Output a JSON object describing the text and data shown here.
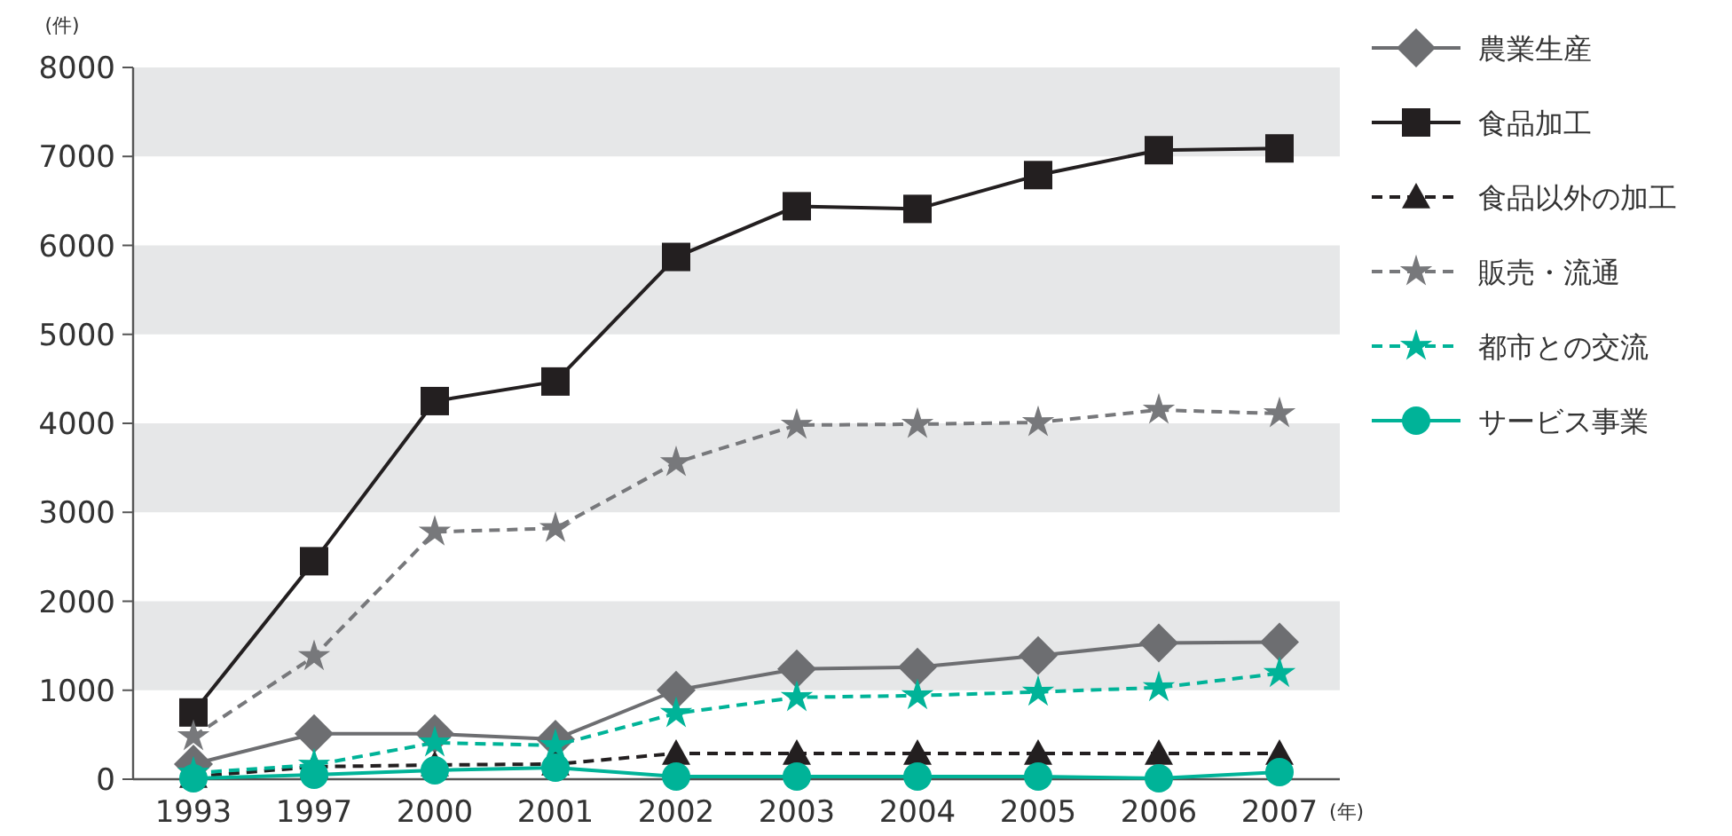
{
  "chart_data": {
    "type": "line",
    "xlabel": "(年)",
    "ylabel": "(件)",
    "categories": [
      "1993",
      "1997",
      "2000",
      "2001",
      "2002",
      "2003",
      "2004",
      "2005",
      "2006",
      "2007"
    ],
    "ylim": [
      0,
      8000
    ],
    "yticks": [
      0,
      1000,
      2000,
      3000,
      4000,
      5000,
      6000,
      7000,
      8000
    ],
    "grid": false,
    "legend": "right",
    "bands": [
      {
        "axis": "y",
        "from": 1000,
        "to": 2000,
        "color": "#e6e7e8"
      },
      {
        "axis": "y",
        "from": 3000,
        "to": 4000,
        "color": "#e6e7e8"
      },
      {
        "axis": "y",
        "from": 5000,
        "to": 6000,
        "color": "#e6e7e8"
      },
      {
        "axis": "y",
        "from": 7000,
        "to": 8000,
        "color": "#e6e7e8"
      }
    ],
    "series": [
      {
        "name": "農業生産",
        "color": "#6d6e71",
        "marker": "diamond",
        "line_style": "solid",
        "values": [
          170,
          510,
          510,
          450,
          1000,
          1240,
          1260,
          1390,
          1530,
          1540
        ]
      },
      {
        "name": "食品加工",
        "color": "#231f20",
        "marker": "square",
        "line_style": "solid",
        "values": [
          750,
          2450,
          4250,
          4470,
          5870,
          6440,
          6410,
          6790,
          7070,
          7090
        ]
      },
      {
        "name": "食品以外の加工",
        "color": "#231f20",
        "marker": "triangle",
        "line_style": "dashed",
        "values": [
          30,
          140,
          160,
          170,
          290,
          290,
          290,
          290,
          290,
          290
        ]
      },
      {
        "name": "販売・流通",
        "color": "#77787b",
        "marker": "star",
        "line_style": "dashed",
        "values": [
          480,
          1380,
          2780,
          2820,
          3560,
          3980,
          3990,
          4010,
          4150,
          4110
        ]
      },
      {
        "name": "都市との交流",
        "color": "#00b398",
        "marker": "star",
        "line_style": "dashed",
        "values": [
          70,
          160,
          410,
          380,
          740,
          920,
          940,
          980,
          1030,
          1190
        ]
      },
      {
        "name": "サービス事業",
        "color": "#00b398",
        "marker": "circle",
        "line_style": "solid",
        "values": [
          10,
          50,
          100,
          130,
          30,
          30,
          30,
          30,
          10,
          80
        ]
      }
    ]
  }
}
